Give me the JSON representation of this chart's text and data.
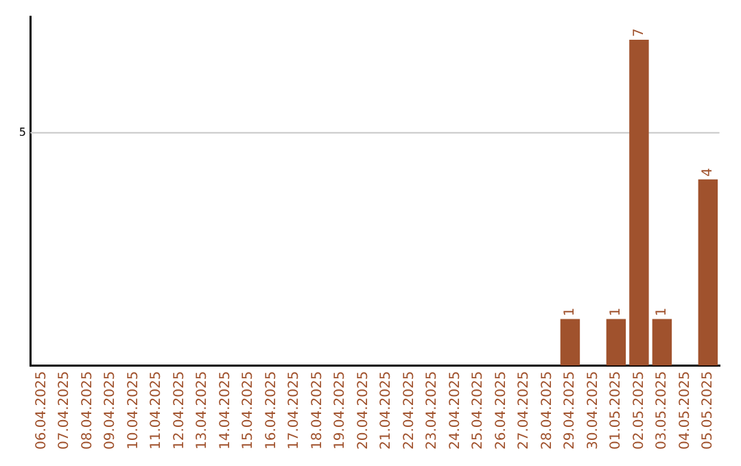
{
  "chart_data": {
    "type": "bar",
    "ylim": [
      0,
      7.5
    ],
    "categories": [
      "06.04.2025",
      "07.04.2025",
      "08.04.2025",
      "09.04.2025",
      "10.04.2025",
      "11.04.2025",
      "12.04.2025",
      "13.04.2025",
      "14.04.2025",
      "15.04.2025",
      "16.04.2025",
      "17.04.2025",
      "18.04.2025",
      "19.04.2025",
      "20.04.2025",
      "21.04.2025",
      "22.04.2025",
      "23.04.2025",
      "24.04.2025",
      "25.04.2025",
      "26.04.2025",
      "27.04.2025",
      "28.04.2025",
      "29.04.2025",
      "30.04.2025",
      "01.05.2025",
      "02.05.2025",
      "03.05.2025",
      "04.05.2025",
      "05.05.2025"
    ],
    "values": [
      null,
      null,
      null,
      null,
      null,
      null,
      null,
      null,
      null,
      null,
      null,
      null,
      null,
      null,
      null,
      null,
      null,
      null,
      null,
      null,
      null,
      null,
      null,
      1,
      null,
      1,
      7,
      1,
      null,
      4
    ],
    "value_labels": [
      null,
      null,
      null,
      null,
      null,
      null,
      null,
      null,
      null,
      null,
      null,
      null,
      null,
      null,
      null,
      null,
      null,
      null,
      null,
      null,
      null,
      null,
      null,
      "1",
      null,
      "1",
      "7",
      "1",
      null,
      "4"
    ],
    "ref_lines": [
      {
        "axis": "y",
        "value": 5,
        "label": "5",
        "color": "#c8c8c8"
      }
    ],
    "color": "#a0522d",
    "legend": false
  }
}
